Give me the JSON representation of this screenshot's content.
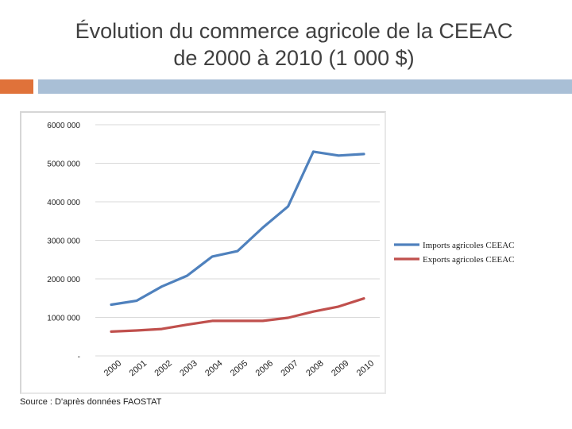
{
  "slide": {
    "title_line1": "Évolution du commerce agricole de la CEEAC",
    "title_line2": "de 2000 à 2010 (1 000 $)",
    "source": "Source : D'après données FAOSTAT"
  },
  "colors": {
    "imports": "#4f81bd",
    "exports": "#c0504d",
    "accent_orange": "#e0723a",
    "accent_blue": "#a9bfd6"
  },
  "chart_data": {
    "type": "line",
    "title": "",
    "xlabel": "",
    "ylabel": "",
    "x": [
      "2000",
      "2001",
      "2002",
      "2003",
      "2004",
      "2005",
      "2006",
      "2007",
      "2008",
      "2009",
      "2010"
    ],
    "ylim": [
      0,
      6000000
    ],
    "yticks": [
      0,
      1000000,
      2000000,
      3000000,
      4000000,
      5000000,
      6000000
    ],
    "ytick_labels": [
      "-",
      "1000 000",
      "2000 000",
      "3000 000",
      "4000 000",
      "5000 000",
      "6000 000"
    ],
    "grid": true,
    "legend_position": "right",
    "series": [
      {
        "name": "Imports agricoles CEEAC",
        "color": "#4f81bd",
        "values": [
          1330000,
          1430000,
          1800000,
          2080000,
          2580000,
          2720000,
          3330000,
          3880000,
          5300000,
          5200000,
          5240000
        ]
      },
      {
        "name": "Exports agricoles CEEAC",
        "color": "#c0504d",
        "values": [
          630000,
          660000,
          700000,
          810000,
          910000,
          910000,
          910000,
          990000,
          1150000,
          1280000,
          1490000
        ]
      }
    ]
  }
}
